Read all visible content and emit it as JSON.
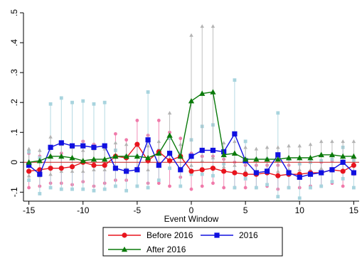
{
  "chart_data": {
    "type": "line",
    "xlabel": "Event Window",
    "ylabel": "",
    "xlim": [
      -15.5,
      15.5
    ],
    "ylim": [
      -0.13,
      0.5
    ],
    "x_ticks": [
      -15,
      -10,
      -5,
      0,
      5,
      10,
      15
    ],
    "y_ticks": [
      -0.1,
      0,
      0.1,
      0.2,
      0.3,
      0.4,
      0.5
    ],
    "y_tick_labels": [
      "-.1",
      "0",
      ".1",
      ".2",
      ".3",
      ".4",
      ".5"
    ],
    "x": [
      -15,
      -14,
      -13,
      -12,
      -11,
      -10,
      -9,
      -8,
      -7,
      -6,
      -5,
      -4,
      -3,
      -2,
      -1,
      0,
      1,
      2,
      3,
      4,
      5,
      6,
      7,
      8,
      9,
      10,
      11,
      12,
      13,
      14,
      15
    ],
    "legend_position": "bottom",
    "grid": false,
    "zero_line_color": "#cc3333",
    "series": [
      {
        "name": "Before 2016",
        "color": "#e8141d",
        "ci_color": "#f07aaa",
        "marker": "circle",
        "values": [
          -0.03,
          -0.025,
          -0.02,
          -0.02,
          -0.015,
          0.0,
          -0.01,
          -0.01,
          0.02,
          0.015,
          0.06,
          0.005,
          0.035,
          0.005,
          0.02,
          -0.03,
          -0.025,
          -0.02,
          -0.03,
          -0.035,
          -0.04,
          -0.04,
          -0.035,
          -0.045,
          -0.04,
          -0.04,
          -0.035,
          -0.035,
          -0.025,
          -0.03,
          -0.01
        ],
        "ci_upper": [
          0.03,
          0.02,
          0.02,
          0.03,
          0.05,
          0.07,
          0.06,
          0.05,
          0.095,
          0.075,
          0.14,
          0.09,
          0.14,
          0.1,
          0.08,
          0.03,
          0.02,
          0.02,
          0.01,
          0.0,
          -0.01,
          -0.01,
          -0.01,
          -0.01,
          -0.01,
          -0.005,
          0.0,
          0.0,
          0.005,
          0.0,
          0.01
        ],
        "ci_lower": [
          -0.085,
          -0.08,
          -0.07,
          -0.07,
          -0.075,
          -0.065,
          -0.08,
          -0.07,
          -0.06,
          -0.06,
          -0.02,
          -0.07,
          -0.07,
          -0.08,
          -0.05,
          -0.09,
          -0.08,
          -0.07,
          -0.085,
          -0.085,
          -0.085,
          -0.085,
          -0.08,
          -0.09,
          -0.085,
          -0.085,
          -0.08,
          -0.08,
          -0.07,
          -0.08,
          -0.04
        ]
      },
      {
        "name": "2016",
        "color": "#1010e0",
        "ci_color": "#a8d4de",
        "marker": "square",
        "values": [
          -0.01,
          -0.04,
          0.05,
          0.065,
          0.055,
          0.055,
          0.05,
          0.055,
          -0.02,
          -0.03,
          -0.025,
          0.075,
          -0.01,
          0.03,
          -0.025,
          0.02,
          0.04,
          0.04,
          0.035,
          0.095,
          0.005,
          -0.035,
          -0.03,
          0.025,
          -0.035,
          -0.05,
          -0.04,
          -0.035,
          -0.025,
          0.0,
          -0.035
        ],
        "ci_upper": [
          0.035,
          0.015,
          0.195,
          0.215,
          0.2,
          0.205,
          0.195,
          0.2,
          0.04,
          0.02,
          0.02,
          0.235,
          0.04,
          0.08,
          0.03,
          0.075,
          0.12,
          0.125,
          0.035,
          0.275,
          0.07,
          0.01,
          0.01,
          0.165,
          0.01,
          -0.005,
          0.0,
          0.005,
          0.01,
          0.05,
          0.005
        ],
        "ci_lower": [
          -0.06,
          -0.105,
          -0.085,
          -0.09,
          -0.09,
          -0.09,
          -0.095,
          -0.09,
          -0.08,
          -0.095,
          -0.08,
          -0.085,
          -0.06,
          -0.02,
          -0.08,
          -0.04,
          -0.04,
          -0.045,
          -0.005,
          -0.085,
          -0.055,
          -0.085,
          -0.075,
          -0.115,
          -0.085,
          -0.12,
          -0.085,
          -0.08,
          -0.065,
          -0.055,
          -0.085
        ]
      },
      {
        "name": "After 2016",
        "color": "#0a7a0a",
        "ci_color": "#b4b4b4",
        "marker": "triangle",
        "values": [
          0.0,
          0.005,
          0.02,
          0.02,
          0.015,
          0.005,
          0.01,
          0.01,
          0.02,
          0.02,
          0.02,
          0.015,
          0.03,
          0.09,
          0.02,
          0.205,
          0.23,
          0.235,
          0.025,
          0.03,
          0.01,
          0.01,
          0.01,
          0.01,
          0.015,
          0.015,
          0.015,
          0.025,
          0.025,
          0.02,
          0.02
        ],
        "ci_upper": [
          0.045,
          0.04,
          0.085,
          0.06,
          0.05,
          0.04,
          0.045,
          0.045,
          0.065,
          0.06,
          0.06,
          0.055,
          0.07,
          0.165,
          0.06,
          0.425,
          0.455,
          0.455,
          0.065,
          0.07,
          0.05,
          0.045,
          0.05,
          0.05,
          0.055,
          0.055,
          0.06,
          0.07,
          0.07,
          0.07,
          0.07
        ],
        "ci_lower": [
          -0.045,
          -0.045,
          -0.04,
          -0.03,
          -0.03,
          -0.03,
          -0.025,
          -0.025,
          -0.02,
          -0.02,
          -0.02,
          -0.025,
          -0.01,
          0.01,
          -0.025,
          -0.01,
          0.005,
          0.015,
          -0.015,
          -0.01,
          -0.03,
          -0.03,
          -0.03,
          -0.03,
          -0.025,
          -0.025,
          -0.025,
          -0.02,
          -0.02,
          -0.03,
          -0.03
        ]
      }
    ]
  }
}
